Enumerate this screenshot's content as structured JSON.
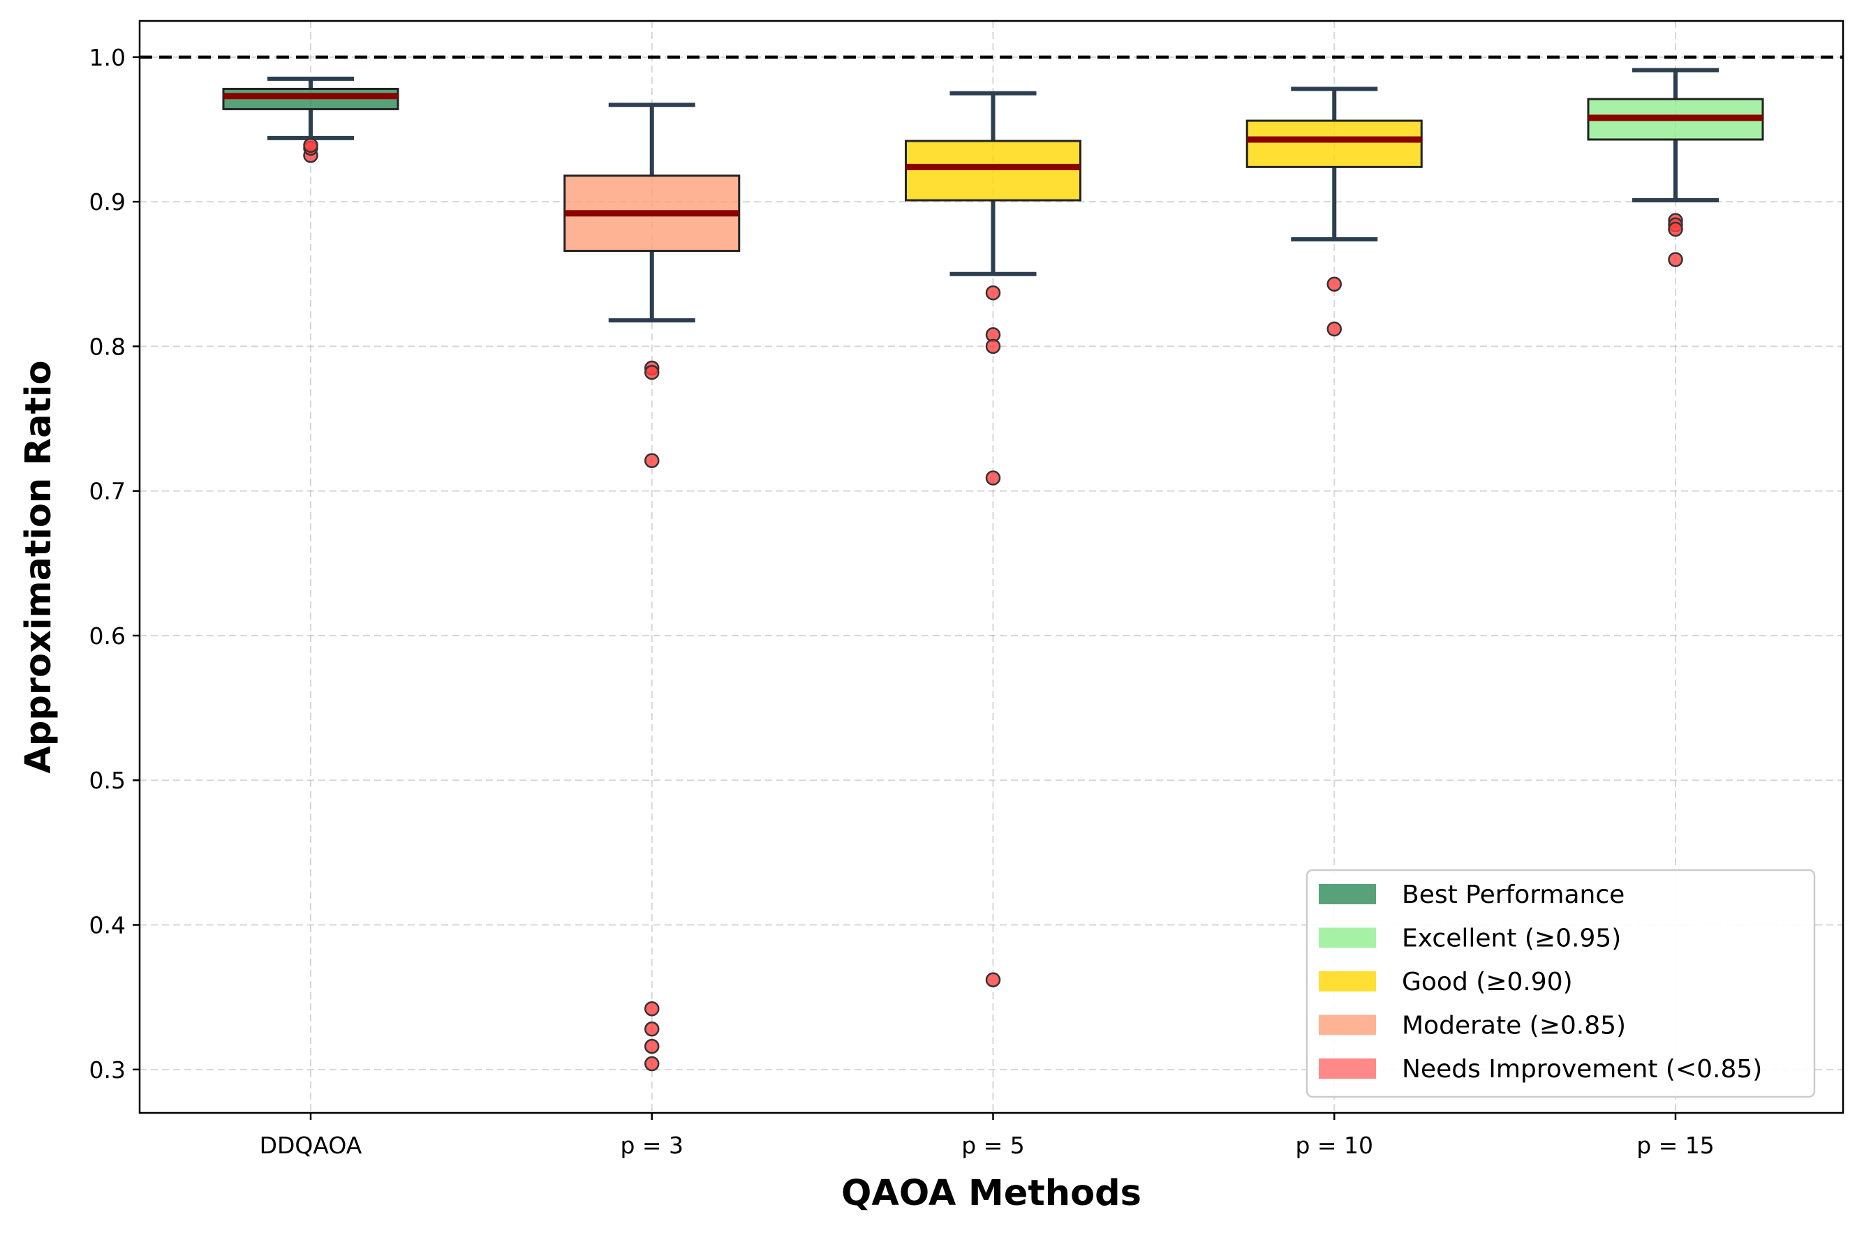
{
  "chart_data": {
    "type": "box",
    "title": "",
    "xlabel": "QAOA Methods",
    "ylabel": "Approximation Ratio",
    "ylim": [
      0.27,
      1.025
    ],
    "yticks": [
      "0.3",
      "0.4",
      "0.5",
      "0.6",
      "0.7",
      "0.8",
      "0.9",
      "1.0"
    ],
    "reference_line": {
      "value": 1.0,
      "style": "dashed",
      "color": "#000000"
    },
    "grid": true,
    "categories": [
      "DDQAOA",
      "p = 3",
      "p = 5",
      "p = 10",
      "p = 15"
    ],
    "boxes": [
      {
        "category": "DDQAOA",
        "whisker_low": 0.944,
        "q1": 0.964,
        "median": 0.973,
        "q3": 0.978,
        "whisker_high": 0.985,
        "outliers": [
          0.932,
          0.937,
          0.939
        ],
        "color": "#2e8b57",
        "rating": "Best Performance"
      },
      {
        "category": "p = 3",
        "whisker_low": 0.818,
        "q1": 0.866,
        "median": 0.892,
        "q3": 0.918,
        "whisker_high": 0.967,
        "outliers": [
          0.785,
          0.782,
          0.721,
          0.342,
          0.328,
          0.316,
          0.304
        ],
        "color": "#ffa07a",
        "rating": "Moderate (≥0.85)"
      },
      {
        "category": "p = 5",
        "whisker_low": 0.85,
        "q1": 0.901,
        "median": 0.924,
        "q3": 0.942,
        "whisker_high": 0.975,
        "outliers": [
          0.837,
          0.808,
          0.8,
          0.709,
          0.362
        ],
        "color": "#ffd700",
        "rating": "Good (≥0.90)"
      },
      {
        "category": "p = 10",
        "whisker_low": 0.874,
        "q1": 0.924,
        "median": 0.943,
        "q3": 0.956,
        "whisker_high": 0.978,
        "outliers": [
          0.843,
          0.812
        ],
        "color": "#ffd700",
        "rating": "Good (≥0.90)"
      },
      {
        "category": "p = 15",
        "whisker_low": 0.901,
        "q1": 0.943,
        "median": 0.958,
        "q3": 0.971,
        "whisker_high": 0.991,
        "outliers": [
          0.887,
          0.884,
          0.881,
          0.86
        ],
        "color": "#90ee90",
        "rating": "Excellent (≥0.95)"
      }
    ],
    "median_color": "#8b0000",
    "whisker_color": "#2c3e50",
    "outlier_color": "#ff4040",
    "legend": {
      "placement": "bottom-right",
      "entries": [
        {
          "label": "Best Performance",
          "color": "#2e8b57"
        },
        {
          "label": "Excellent (≥0.95)",
          "color": "#90ee90"
        },
        {
          "label": "Good (≥0.90)",
          "color": "#ffd700"
        },
        {
          "label": "Moderate (≥0.85)",
          "color": "#ffa07a"
        },
        {
          "label": "Needs Improvement (<0.85)",
          "color": "#ff6b6b"
        }
      ]
    }
  }
}
